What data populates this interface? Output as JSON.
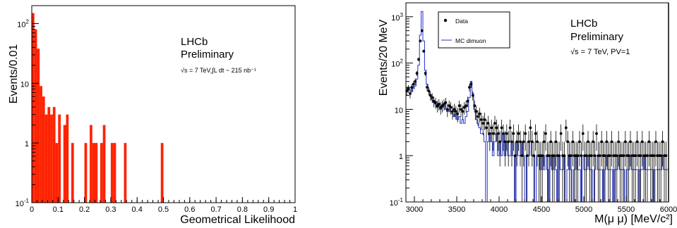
{
  "chart_data": [
    {
      "type": "bar",
      "xlabel": "Geometrical Likelihood",
      "ylabel": "Events/0.01",
      "xlim": [
        0,
        1
      ],
      "ylim": [
        0.1,
        200
      ],
      "log_y": true,
      "bar_color": "#ff2200",
      "x_ticks": [
        "0",
        "0.1",
        "0.2",
        "0.3",
        "0.4",
        "0.5",
        "0.6",
        "0.7",
        "0.8",
        "0.9",
        "1"
      ],
      "y_ticks": [
        {
          "value": 0.1,
          "base": "10",
          "exp": "-1"
        },
        {
          "value": 1,
          "label": "1"
        },
        {
          "value": 10,
          "label": "10"
        },
        {
          "value": 100,
          "base": "10",
          "exp": "2"
        }
      ],
      "annotation": {
        "line1": "LHCb",
        "line2": "Preliminary",
        "line3": "√s = 7 TeV,∫L dt ~ 215 nb⁻¹"
      },
      "bins": [
        {
          "x": 0.0,
          "y": 150
        },
        {
          "x": 0.01,
          "y": 80
        },
        {
          "x": 0.02,
          "y": 38
        },
        {
          "x": 0.03,
          "y": 9
        },
        {
          "x": 0.04,
          "y": 6
        },
        {
          "x": 0.05,
          "y": 3
        },
        {
          "x": 0.06,
          "y": 4
        },
        {
          "x": 0.07,
          "y": 3
        },
        {
          "x": 0.08,
          "y": 4
        },
        {
          "x": 0.09,
          "y": 1
        },
        {
          "x": 0.1,
          "y": 3
        },
        {
          "x": 0.12,
          "y": 2
        },
        {
          "x": 0.13,
          "y": 3
        },
        {
          "x": 0.15,
          "y": 1
        },
        {
          "x": 0.2,
          "y": 1
        },
        {
          "x": 0.22,
          "y": 2
        },
        {
          "x": 0.23,
          "y": 1
        },
        {
          "x": 0.24,
          "y": 1
        },
        {
          "x": 0.26,
          "y": 1
        },
        {
          "x": 0.27,
          "y": 2
        },
        {
          "x": 0.3,
          "y": 1
        },
        {
          "x": 0.31,
          "y": 1
        },
        {
          "x": 0.35,
          "y": 1
        },
        {
          "x": 0.49,
          "y": 1
        }
      ]
    },
    {
      "type": "scatter",
      "xlabel": "M(μ μ) [MeV/c²]",
      "ylabel": "Events/20 MeV",
      "xlim": [
        2900,
        6000
      ],
      "ylim": [
        0.1,
        2000
      ],
      "log_y": true,
      "x_ticks": [
        "3000",
        "3500",
        "4000",
        "4500",
        "5000",
        "5500",
        "6000"
      ],
      "y_ticks": [
        {
          "value": 0.1,
          "base": "10",
          "exp": "-1"
        },
        {
          "value": 1,
          "label": "1"
        },
        {
          "value": 10,
          "label": "10"
        },
        {
          "value": 100,
          "base": "10",
          "exp": "2"
        },
        {
          "value": 1000,
          "base": "10",
          "exp": "3"
        }
      ],
      "legend": {
        "position": "top-left",
        "data_label": "Data",
        "mc_label": "MC dimuon"
      },
      "annotation": {
        "line1": "LHCb",
        "line2": "Preliminary",
        "line3": "√s = 7 TeV, PV=1"
      },
      "mc_color": "#2233cc",
      "data_points": [
        [
          2910,
          25
        ],
        [
          2930,
          28
        ],
        [
          2950,
          22
        ],
        [
          2970,
          30
        ],
        [
          2990,
          35
        ],
        [
          3010,
          40
        ],
        [
          3030,
          60
        ],
        [
          3050,
          120
        ],
        [
          3070,
          300
        ],
        [
          3090,
          500
        ],
        [
          3110,
          180
        ],
        [
          3130,
          60
        ],
        [
          3150,
          30
        ],
        [
          3170,
          25
        ],
        [
          3190,
          20
        ],
        [
          3210,
          18
        ],
        [
          3230,
          15
        ],
        [
          3250,
          14
        ],
        [
          3270,
          12
        ],
        [
          3290,
          13
        ],
        [
          3310,
          11
        ],
        [
          3330,
          12
        ],
        [
          3350,
          13
        ],
        [
          3370,
          14
        ],
        [
          3390,
          10
        ],
        [
          3410,
          12
        ],
        [
          3430,
          11
        ],
        [
          3450,
          9
        ],
        [
          3470,
          10
        ],
        [
          3490,
          9
        ],
        [
          3510,
          8
        ],
        [
          3530,
          12
        ],
        [
          3550,
          10
        ],
        [
          3570,
          9
        ],
        [
          3590,
          11
        ],
        [
          3610,
          12
        ],
        [
          3630,
          15
        ],
        [
          3650,
          30
        ],
        [
          3670,
          35
        ],
        [
          3690,
          20
        ],
        [
          3710,
          12
        ],
        [
          3730,
          9
        ],
        [
          3750,
          7
        ],
        [
          3770,
          8
        ],
        [
          3790,
          6
        ],
        [
          3810,
          5
        ],
        [
          3830,
          6
        ],
        [
          3850,
          4
        ],
        [
          3870,
          5
        ],
        [
          3890,
          3
        ],
        [
          3910,
          4
        ],
        [
          3930,
          3
        ],
        [
          3950,
          5
        ],
        [
          3970,
          4
        ],
        [
          3990,
          3
        ],
        [
          4010,
          2
        ],
        [
          4030,
          4
        ],
        [
          4050,
          3
        ],
        [
          4070,
          2
        ],
        [
          4090,
          3
        ],
        [
          4110,
          2
        ],
        [
          4130,
          4
        ],
        [
          4150,
          2
        ],
        [
          4170,
          3
        ],
        [
          4190,
          1
        ],
        [
          4210,
          2
        ],
        [
          4230,
          3
        ],
        [
          4250,
          2
        ],
        [
          4270,
          1
        ],
        [
          4290,
          2
        ],
        [
          4310,
          3
        ],
        [
          4330,
          1
        ],
        [
          4350,
          2
        ],
        [
          4370,
          4
        ],
        [
          4390,
          2
        ],
        [
          4410,
          1
        ],
        [
          4430,
          3
        ],
        [
          4450,
          2
        ],
        [
          4470,
          1
        ],
        [
          4490,
          1
        ],
        [
          4510,
          1
        ],
        [
          4530,
          2
        ],
        [
          4550,
          3
        ],
        [
          4570,
          1
        ],
        [
          4590,
          1
        ],
        [
          4610,
          2
        ],
        [
          4630,
          1
        ],
        [
          4650,
          1
        ],
        [
          4670,
          2
        ],
        [
          4690,
          1
        ],
        [
          4710,
          1
        ],
        [
          4730,
          3
        ],
        [
          4750,
          1
        ],
        [
          4770,
          1
        ],
        [
          4790,
          4
        ],
        [
          4810,
          2
        ],
        [
          4830,
          1
        ],
        [
          4850,
          1
        ],
        [
          4870,
          2
        ],
        [
          4890,
          1
        ],
        [
          4910,
          1
        ],
        [
          4930,
          1
        ],
        [
          4950,
          2
        ],
        [
          4970,
          1
        ],
        [
          4990,
          3
        ],
        [
          5010,
          1
        ],
        [
          5030,
          1
        ],
        [
          5050,
          2
        ],
        [
          5070,
          1
        ],
        [
          5090,
          1
        ],
        [
          5110,
          2
        ],
        [
          5130,
          1
        ],
        [
          5150,
          3
        ],
        [
          5170,
          1
        ],
        [
          5190,
          1
        ],
        [
          5210,
          2
        ],
        [
          5230,
          1
        ],
        [
          5250,
          1
        ],
        [
          5270,
          2
        ],
        [
          5290,
          1
        ],
        [
          5310,
          1
        ],
        [
          5330,
          2
        ],
        [
          5350,
          1
        ],
        [
          5370,
          1
        ],
        [
          5390,
          1
        ],
        [
          5410,
          2
        ],
        [
          5430,
          1
        ],
        [
          5450,
          1
        ],
        [
          5470,
          1
        ],
        [
          5490,
          2
        ],
        [
          5510,
          1
        ],
        [
          5530,
          1
        ],
        [
          5550,
          2
        ],
        [
          5570,
          1
        ],
        [
          5590,
          1
        ],
        [
          5610,
          1
        ],
        [
          5630,
          2
        ],
        [
          5650,
          1
        ],
        [
          5670,
          1
        ],
        [
          5690,
          2
        ],
        [
          5710,
          1
        ],
        [
          5730,
          1
        ],
        [
          5750,
          1
        ],
        [
          5770,
          2
        ],
        [
          5790,
          1
        ],
        [
          5810,
          1
        ],
        [
          5830,
          1
        ],
        [
          5850,
          2
        ],
        [
          5870,
          1
        ],
        [
          5890,
          1
        ],
        [
          5910,
          1
        ],
        [
          5930,
          2
        ],
        [
          5950,
          1
        ],
        [
          5970,
          1
        ]
      ],
      "mc_bins": [
        [
          2900,
          30
        ],
        [
          2920,
          26
        ],
        [
          2940,
          30
        ],
        [
          2960,
          24
        ],
        [
          2980,
          28
        ],
        [
          3000,
          32
        ],
        [
          3020,
          45
        ],
        [
          3040,
          90
        ],
        [
          3060,
          400
        ],
        [
          3080,
          1300
        ],
        [
          3100,
          300
        ],
        [
          3120,
          70
        ],
        [
          3140,
          35
        ],
        [
          3160,
          25
        ],
        [
          3180,
          20
        ],
        [
          3200,
          16
        ],
        [
          3220,
          14
        ],
        [
          3240,
          13
        ],
        [
          3260,
          11
        ],
        [
          3280,
          12
        ],
        [
          3300,
          10
        ],
        [
          3320,
          11
        ],
        [
          3340,
          12
        ],
        [
          3360,
          10
        ],
        [
          3380,
          9
        ],
        [
          3400,
          10
        ],
        [
          3420,
          9
        ],
        [
          3440,
          8
        ],
        [
          3460,
          7
        ],
        [
          3480,
          8
        ],
        [
          3500,
          6
        ],
        [
          3520,
          7
        ],
        [
          3540,
          5
        ],
        [
          3560,
          6
        ],
        [
          3580,
          5
        ],
        [
          3600,
          7
        ],
        [
          3620,
          9
        ],
        [
          3640,
          18
        ],
        [
          3660,
          40
        ],
        [
          3680,
          22
        ],
        [
          3700,
          10
        ],
        [
          3720,
          6
        ],
        [
          3740,
          5
        ],
        [
          3760,
          4
        ],
        [
          3780,
          3
        ],
        [
          3800,
          3
        ],
        [
          3820,
          2
        ],
        [
          3840,
          0.1
        ],
        [
          3860,
          2
        ],
        [
          3880,
          3
        ],
        [
          3900,
          2
        ],
        [
          3920,
          1
        ],
        [
          3940,
          2
        ],
        [
          3960,
          3
        ],
        [
          3980,
          1
        ],
        [
          4000,
          2
        ],
        [
          4020,
          1
        ],
        [
          4040,
          3
        ],
        [
          4060,
          1
        ],
        [
          4080,
          2
        ],
        [
          4100,
          1
        ],
        [
          4120,
          1
        ],
        [
          4140,
          2
        ],
        [
          4160,
          1
        ],
        [
          4180,
          0.1
        ],
        [
          4200,
          2
        ],
        [
          4220,
          1
        ],
        [
          4240,
          1
        ],
        [
          4260,
          2
        ],
        [
          4280,
          1
        ],
        [
          4300,
          0.1
        ],
        [
          4320,
          1
        ],
        [
          4340,
          1
        ],
        [
          4360,
          2
        ],
        [
          4380,
          1
        ],
        [
          4400,
          1
        ],
        [
          4420,
          0.1
        ],
        [
          4440,
          1
        ],
        [
          4460,
          1
        ],
        [
          4480,
          0.5
        ],
        [
          4500,
          1
        ],
        [
          4520,
          0.5
        ],
        [
          4540,
          1
        ],
        [
          4560,
          0.5
        ],
        [
          4580,
          0.1
        ],
        [
          4600,
          1
        ],
        [
          4620,
          0.5
        ],
        [
          4640,
          1
        ],
        [
          4660,
          0.5
        ],
        [
          4680,
          0.1
        ],
        [
          4700,
          1
        ],
        [
          4720,
          0.5
        ],
        [
          4740,
          0.5
        ],
        [
          4760,
          1
        ],
        [
          4780,
          0.1
        ],
        [
          4800,
          0.5
        ],
        [
          4820,
          1
        ],
        [
          4840,
          0.5
        ],
        [
          4860,
          0.1
        ],
        [
          4880,
          0.5
        ],
        [
          4900,
          1
        ],
        [
          4920,
          0.5
        ],
        [
          4940,
          0.5
        ],
        [
          4960,
          0.1
        ],
        [
          4980,
          1
        ],
        [
          5000,
          0.5
        ],
        [
          5020,
          0.5
        ],
        [
          5040,
          1
        ],
        [
          5060,
          0.5
        ],
        [
          5080,
          0.5
        ],
        [
          5100,
          0.1
        ],
        [
          5120,
          0.5
        ],
        [
          5140,
          1
        ],
        [
          5160,
          0.5
        ],
        [
          5180,
          0.5
        ],
        [
          5200,
          0.5
        ],
        [
          5220,
          0.1
        ],
        [
          5240,
          0.5
        ],
        [
          5260,
          1
        ],
        [
          5280,
          0.5
        ],
        [
          5300,
          0.5
        ],
        [
          5320,
          0.5
        ],
        [
          5340,
          0.1
        ],
        [
          5360,
          0.5
        ],
        [
          5380,
          0.5
        ],
        [
          5400,
          1
        ],
        [
          5420,
          0.5
        ],
        [
          5440,
          0.5
        ],
        [
          5460,
          0.5
        ],
        [
          5480,
          0.1
        ],
        [
          5500,
          0.5
        ],
        [
          5520,
          0.5
        ],
        [
          5540,
          1
        ],
        [
          5560,
          0.5
        ],
        [
          5580,
          0.5
        ],
        [
          5600,
          0.5
        ],
        [
          5620,
          0.5
        ],
        [
          5640,
          0.1
        ],
        [
          5660,
          0.5
        ],
        [
          5680,
          0.5
        ],
        [
          5700,
          1
        ],
        [
          5720,
          0.5
        ],
        [
          5740,
          0.5
        ],
        [
          5760,
          0.5
        ],
        [
          5780,
          0.5
        ],
        [
          5800,
          0.5
        ],
        [
          5820,
          0.1
        ],
        [
          5840,
          0.5
        ],
        [
          5860,
          0.5
        ],
        [
          5880,
          0.5
        ],
        [
          5900,
          0.5
        ],
        [
          5920,
          1
        ],
        [
          5940,
          0.5
        ],
        [
          5960,
          0.5
        ],
        [
          5980,
          0.5
        ]
      ]
    }
  ]
}
